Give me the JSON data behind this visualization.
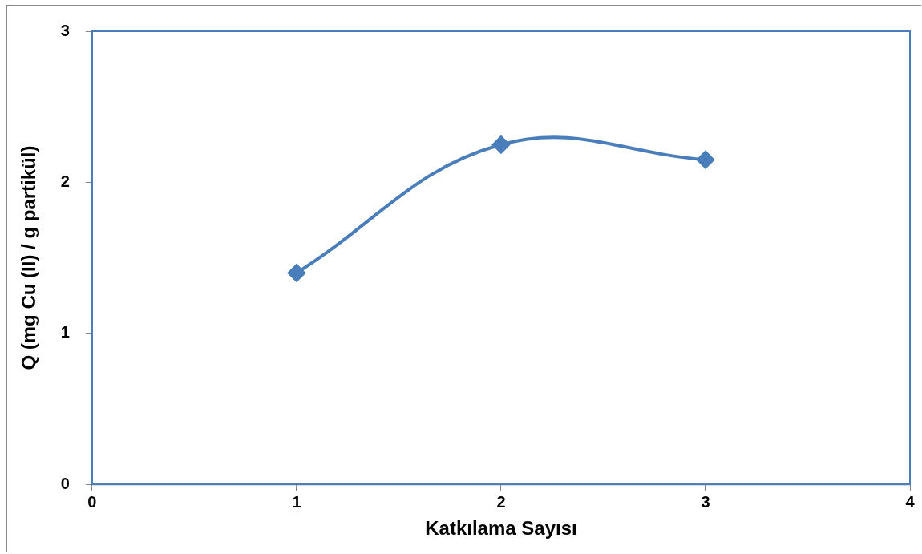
{
  "chart_data": {
    "type": "line",
    "xlabel": "Katkılama Sayısı",
    "ylabel": "Q (mg Cu (II) / g partikül)",
    "x": [
      1,
      2,
      3
    ],
    "series": [
      {
        "color": "#4a7ebb",
        "values": [
          1.4,
          2.25,
          2.15
        ]
      }
    ],
    "xlim": [
      0,
      4
    ],
    "xticks": [
      0,
      1,
      2,
      3,
      4
    ],
    "ylim": [
      0,
      3
    ],
    "yticks": [
      0,
      1,
      2,
      3
    ],
    "grid": false,
    "legend": false,
    "marker": "diamond",
    "line_style": "solid"
  }
}
